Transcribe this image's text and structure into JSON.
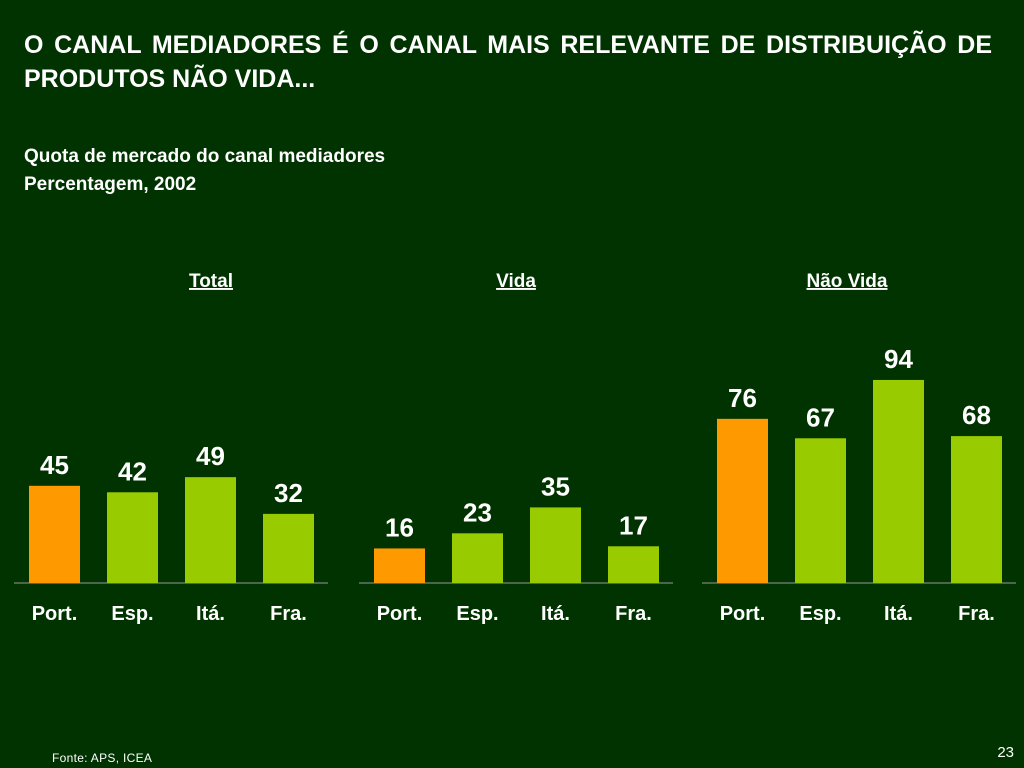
{
  "headline": "O CANAL MEDIADORES É O CANAL MAIS RELEVANTE DE DISTRIBUIÇÃO DE PRODUTOS NÃO VIDA...",
  "subtitle": {
    "line1": "Quota de mercado do canal mediadores",
    "line2": "Percentagem, 2002"
  },
  "colors": {
    "background": "#003300",
    "highlight_bar": "#FF9900",
    "bar": "#99CC00",
    "baseline": "#999999",
    "text": "#FFFFFF"
  },
  "chart_data": [
    {
      "type": "bar",
      "title": "Total",
      "categories": [
        "Port.",
        "Esp.",
        "Itá.",
        "Fra."
      ],
      "values": [
        45,
        42,
        49,
        32
      ],
      "highlight_index": 0,
      "ylim": [
        0,
        100
      ]
    },
    {
      "type": "bar",
      "title": "Vida",
      "categories": [
        "Port.",
        "Esp.",
        "Itá.",
        "Fra."
      ],
      "values": [
        16,
        23,
        35,
        17
      ],
      "highlight_index": 0,
      "ylim": [
        0,
        100
      ]
    },
    {
      "type": "bar",
      "title": "Não Vida",
      "categories": [
        "Port.",
        "Esp.",
        "Itá.",
        "Fra."
      ],
      "values": [
        76,
        67,
        94,
        68
      ],
      "highlight_index": 0,
      "ylim": [
        0,
        100
      ]
    }
  ],
  "footer": {
    "source": "Fonte: APS, ICEA",
    "page_number": "23"
  }
}
